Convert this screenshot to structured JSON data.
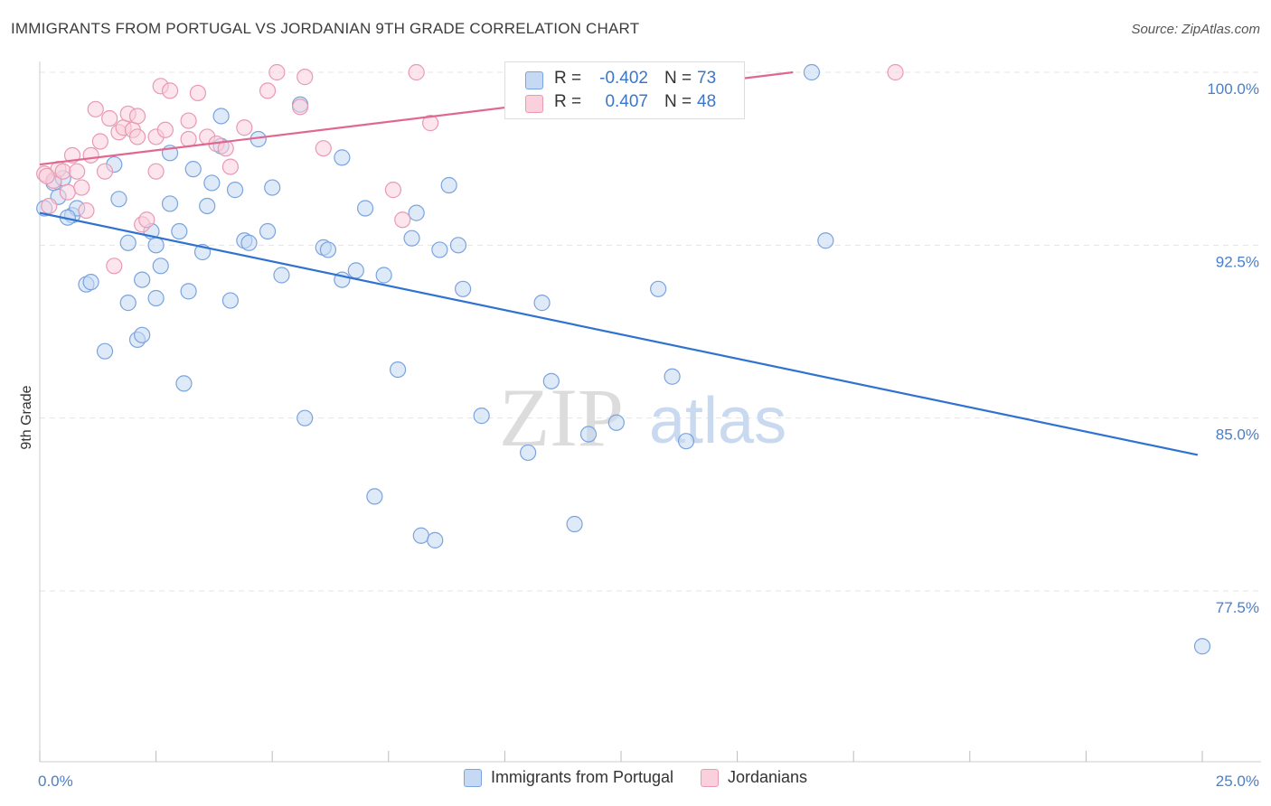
{
  "header": {
    "title": "IMMIGRANTS FROM PORTUGAL VS JORDANIAN 9TH GRADE CORRELATION CHART",
    "source": "Source: ZipAtlas.com"
  },
  "watermark": {
    "zip": "ZIP",
    "atlas": "atlas"
  },
  "stats": [
    {
      "r_label": "R =",
      "r_value": "-0.402",
      "n_label": "N =",
      "n_value": "73",
      "color": "#a7c4ee"
    },
    {
      "r_label": "R =",
      "r_value": "0.407",
      "n_label": "N =",
      "n_value": "48",
      "color": "#f5b3c6"
    }
  ],
  "legend": [
    {
      "label": "Immigrants from Portugal",
      "fill": "#c5d8f4",
      "stroke": "#7aa3df"
    },
    {
      "label": "Jordanians",
      "fill": "#f9d0dc",
      "stroke": "#e99ab2"
    }
  ],
  "chart_data": {
    "type": "scatter",
    "title": "IMMIGRANTS FROM PORTUGAL VS JORDANIAN 9TH GRADE CORRELATION CHART",
    "xlabel": "",
    "ylabel": "9th Grade",
    "xlim": [
      0,
      25
    ],
    "ylim": [
      71.5,
      100.8
    ],
    "x_tick_labels": [
      "0.0%",
      "25.0%"
    ],
    "y_ticks": [
      77.5,
      85.0,
      92.5,
      100.0
    ],
    "y_tick_labels": [
      "77.5%",
      "85.0%",
      "92.5%",
      "100.0%"
    ],
    "grid": true,
    "legend_position": "bottom",
    "series": [
      {
        "name": "Immigrants from Portugal",
        "color": "#7aa3df",
        "fill": "#c5d8f4",
        "trend": {
          "x": [
            0.0,
            24.9
          ],
          "y": [
            93.9,
            83.4
          ],
          "color": "#2f72cf"
        },
        "points": [
          [
            0.1,
            94.1
          ],
          [
            0.3,
            95.2
          ],
          [
            0.4,
            94.6
          ],
          [
            0.5,
            95.4
          ],
          [
            0.7,
            93.8
          ],
          [
            0.8,
            94.1
          ],
          [
            1.0,
            90.8
          ],
          [
            1.1,
            90.9
          ],
          [
            1.4,
            87.9
          ],
          [
            1.6,
            96.0
          ],
          [
            1.7,
            94.5
          ],
          [
            1.9,
            92.6
          ],
          [
            1.9,
            90.0
          ],
          [
            2.1,
            88.4
          ],
          [
            2.2,
            88.6
          ],
          [
            2.2,
            91.0
          ],
          [
            2.4,
            93.1
          ],
          [
            2.5,
            92.5
          ],
          [
            2.6,
            91.6
          ],
          [
            2.8,
            96.5
          ],
          [
            2.8,
            94.3
          ],
          [
            3.0,
            93.1
          ],
          [
            3.1,
            86.5
          ],
          [
            3.2,
            90.5
          ],
          [
            3.3,
            95.8
          ],
          [
            3.5,
            92.2
          ],
          [
            3.6,
            94.2
          ],
          [
            3.7,
            95.2
          ],
          [
            3.9,
            96.8
          ],
          [
            3.9,
            98.1
          ],
          [
            4.1,
            90.1
          ],
          [
            4.2,
            94.9
          ],
          [
            4.4,
            92.7
          ],
          [
            4.5,
            92.6
          ],
          [
            4.7,
            97.1
          ],
          [
            4.9,
            93.1
          ],
          [
            5.2,
            91.2
          ],
          [
            5.6,
            98.6
          ],
          [
            5.7,
            85.0
          ],
          [
            6.1,
            92.4
          ],
          [
            6.2,
            92.3
          ],
          [
            6.5,
            96.3
          ],
          [
            6.5,
            91.0
          ],
          [
            6.8,
            91.4
          ],
          [
            7.0,
            94.1
          ],
          [
            7.2,
            81.6
          ],
          [
            7.4,
            91.2
          ],
          [
            7.7,
            87.1
          ],
          [
            8.0,
            92.8
          ],
          [
            8.1,
            93.9
          ],
          [
            8.2,
            79.9
          ],
          [
            8.5,
            79.7
          ],
          [
            8.6,
            92.3
          ],
          [
            8.8,
            95.1
          ],
          [
            9.0,
            92.5
          ],
          [
            9.1,
            90.6
          ],
          [
            9.5,
            85.1
          ],
          [
            10.5,
            83.5
          ],
          [
            10.8,
            90.0
          ],
          [
            11.0,
            86.6
          ],
          [
            11.5,
            80.4
          ],
          [
            11.8,
            84.3
          ],
          [
            12.4,
            84.8
          ],
          [
            13.3,
            90.6
          ],
          [
            13.6,
            86.8
          ],
          [
            13.9,
            84.0
          ],
          [
            13.9,
            100.0
          ],
          [
            16.6,
            100.0
          ],
          [
            16.9,
            92.7
          ],
          [
            25.0,
            75.1
          ],
          [
            0.6,
            93.7
          ],
          [
            2.5,
            90.2
          ],
          [
            5.0,
            95.0
          ]
        ]
      },
      {
        "name": "Jordanians",
        "color": "#e99ab2",
        "fill": "#f9d0dc",
        "trend": {
          "x": [
            0.0,
            16.2
          ],
          "y": [
            96.0,
            100.0
          ],
          "color": "#e06890"
        },
        "points": [
          [
            0.1,
            95.6
          ],
          [
            0.3,
            95.3
          ],
          [
            0.4,
            95.8
          ],
          [
            0.5,
            95.7
          ],
          [
            0.6,
            94.8
          ],
          [
            0.7,
            96.4
          ],
          [
            0.8,
            95.7
          ],
          [
            0.9,
            95.0
          ],
          [
            1.1,
            96.4
          ],
          [
            1.2,
            98.4
          ],
          [
            1.3,
            97.0
          ],
          [
            1.4,
            95.7
          ],
          [
            1.5,
            98.0
          ],
          [
            1.6,
            91.6
          ],
          [
            1.7,
            97.4
          ],
          [
            1.8,
            97.6
          ],
          [
            1.9,
            98.2
          ],
          [
            2.0,
            97.5
          ],
          [
            2.1,
            97.2
          ],
          [
            2.1,
            98.1
          ],
          [
            2.2,
            93.4
          ],
          [
            2.3,
            93.6
          ],
          [
            2.5,
            97.2
          ],
          [
            2.5,
            95.7
          ],
          [
            2.6,
            99.4
          ],
          [
            2.7,
            97.5
          ],
          [
            2.8,
            99.2
          ],
          [
            3.2,
            97.1
          ],
          [
            3.2,
            97.9
          ],
          [
            3.4,
            99.1
          ],
          [
            3.6,
            97.2
          ],
          [
            3.8,
            96.9
          ],
          [
            4.0,
            96.7
          ],
          [
            4.1,
            95.9
          ],
          [
            4.4,
            97.6
          ],
          [
            4.9,
            99.2
          ],
          [
            5.1,
            100.0
          ],
          [
            5.6,
            98.5
          ],
          [
            5.7,
            99.8
          ],
          [
            6.1,
            96.7
          ],
          [
            7.6,
            94.9
          ],
          [
            7.8,
            93.6
          ],
          [
            8.1,
            100.0
          ],
          [
            8.4,
            97.8
          ],
          [
            0.2,
            94.2
          ],
          [
            0.15,
            95.5
          ],
          [
            18.4,
            100.0
          ],
          [
            1.0,
            94.0
          ]
        ]
      }
    ]
  }
}
